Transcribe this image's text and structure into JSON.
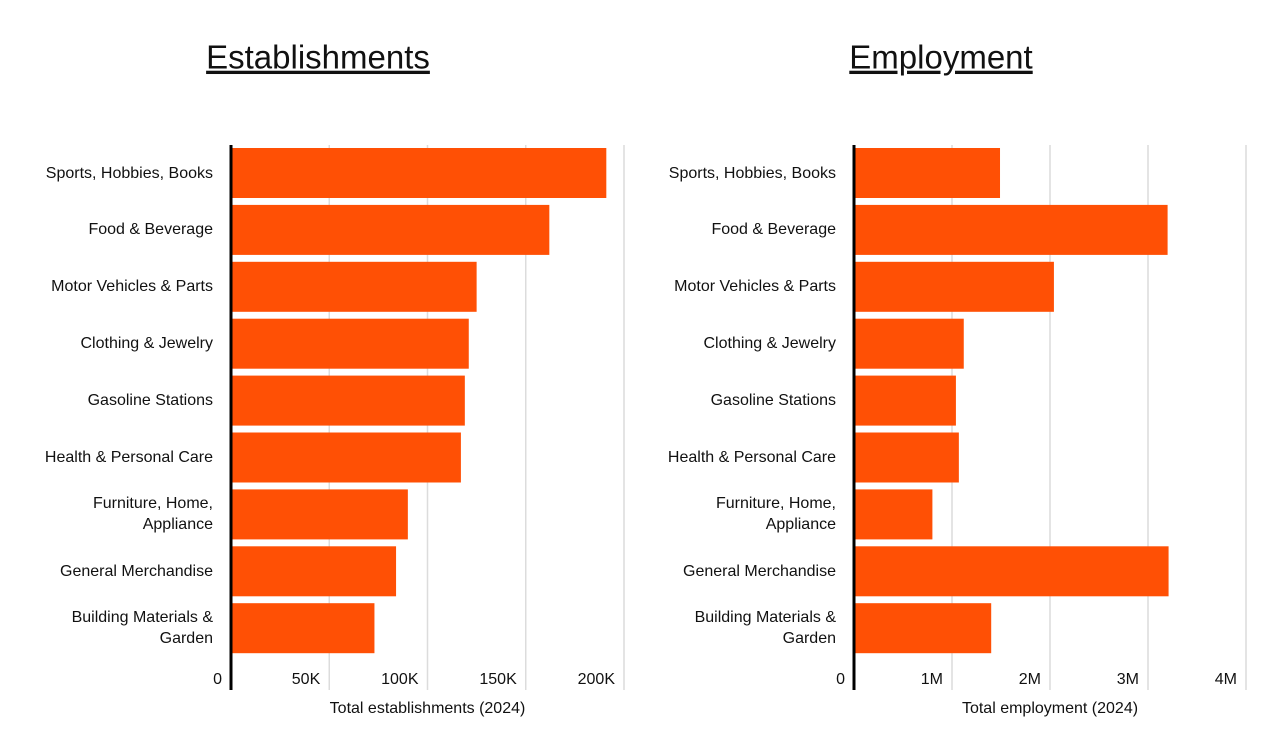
{
  "chart_data": [
    {
      "type": "bar",
      "orientation": "horizontal",
      "title": "Establishments",
      "x_label": "Total establishments (2024)",
      "categories": [
        "Sports, Hobbies, Books",
        "Food & Beverage",
        "Motor Vehicles & Parts",
        "Clothing & Jewelry",
        "Gasoline Stations",
        "Health & Personal Care",
        "Furniture, Home, Appliance",
        "General Merchandise",
        "Building Materials & Garden"
      ],
      "values": [
        191000,
        162000,
        125000,
        121000,
        119000,
        117000,
        90000,
        84000,
        73000
      ],
      "color": "#ff5005",
      "xlim": [
        0,
        200000
      ],
      "xticks": [
        0,
        {
          "value": 50000,
          "label": "50K"
        },
        {
          "value": 100000,
          "label": "100K"
        },
        {
          "value": 150000,
          "label": "150K"
        },
        {
          "value": 200000,
          "label": "200K"
        }
      ],
      "grid": true
    },
    {
      "type": "bar",
      "orientation": "horizontal",
      "title": "Employment",
      "x_label": "Total employment (2024)",
      "categories": [
        "Sports, Hobbies, Books",
        "Food & Beverage",
        "Motor Vehicles & Parts",
        "Clothing & Jewelry",
        "Gasoline Stations",
        "Health & Personal Care",
        "Furniture, Home, Appliance",
        "General Merchandise",
        "Building Materials & Garden"
      ],
      "values": [
        1490000,
        3200000,
        2040000,
        1120000,
        1040000,
        1070000,
        800000,
        3210000,
        1400000
      ],
      "color": "#ff5005",
      "xlim": [
        0,
        4000000
      ],
      "xticks": [
        0,
        {
          "value": 1000000,
          "label": "1M"
        },
        {
          "value": 2000000,
          "label": "2M"
        },
        {
          "value": 3000000,
          "label": "3M"
        },
        {
          "value": 4000000,
          "label": "4M"
        }
      ],
      "grid": true
    }
  ]
}
